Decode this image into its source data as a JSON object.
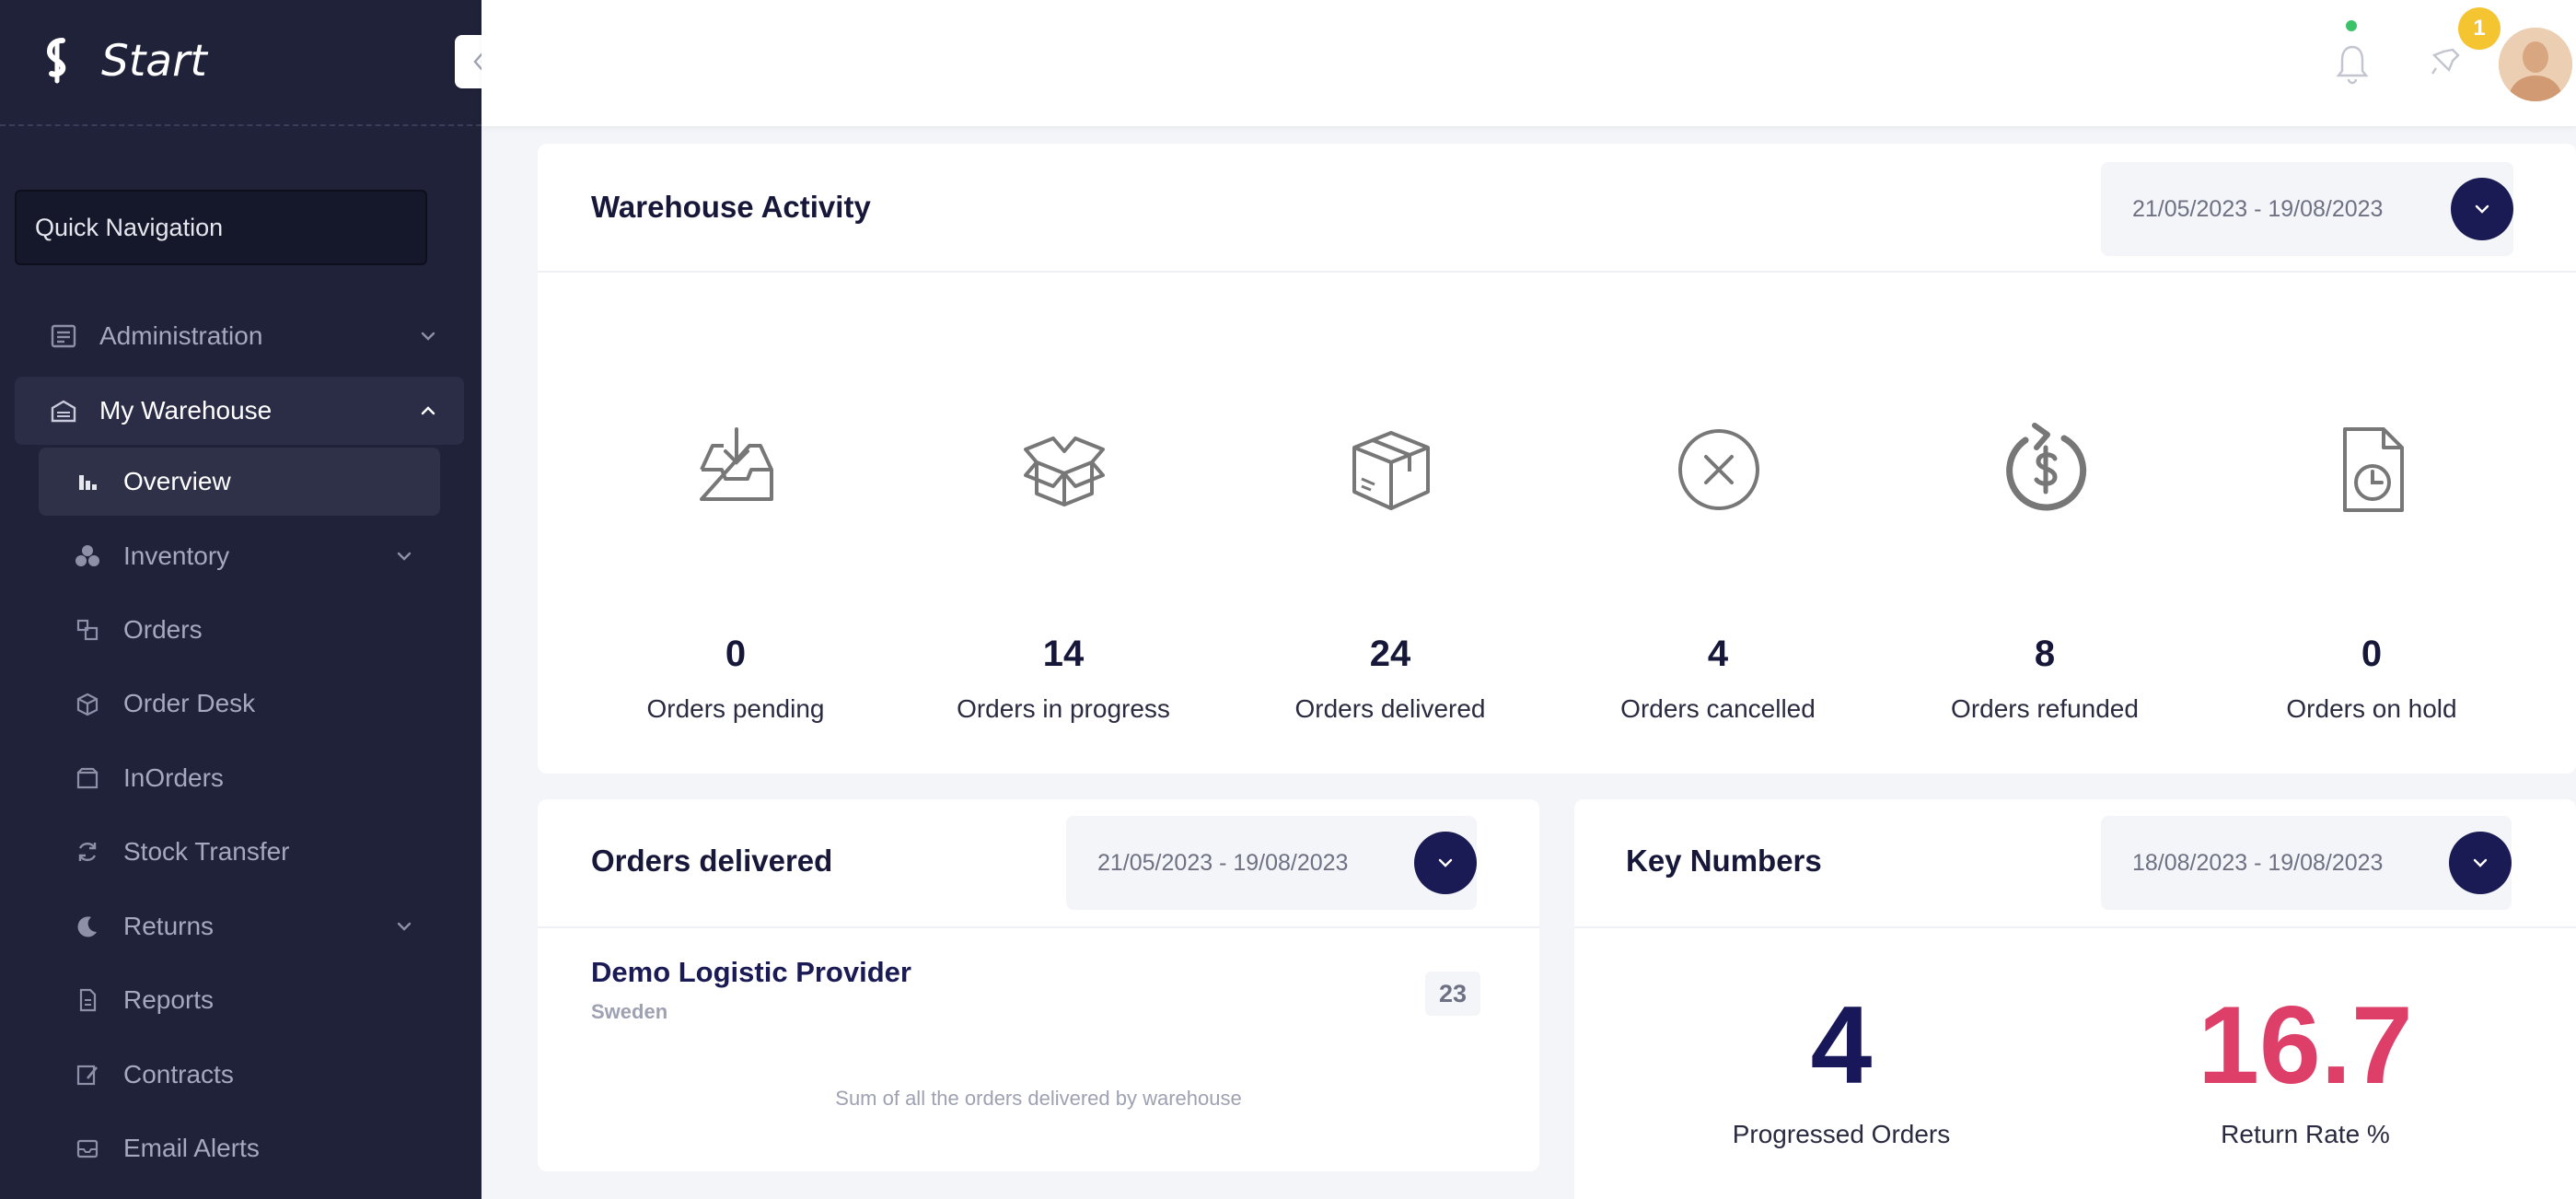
{
  "brand": {
    "name": "Start"
  },
  "sidebar": {
    "quick_nav_placeholder": "Quick Navigation",
    "items": [
      {
        "label": "Administration",
        "icon": "admin-panel-icon"
      },
      {
        "label": "My Warehouse",
        "icon": "warehouse-icon"
      },
      {
        "label": "Overview",
        "icon": "bar-chart-icon"
      },
      {
        "label": "Inventory",
        "icon": "boxes-icon"
      },
      {
        "label": "Orders",
        "icon": "orders-icon"
      },
      {
        "label": "Order Desk",
        "icon": "package-icon"
      },
      {
        "label": "InOrders",
        "icon": "inbox-box-icon"
      },
      {
        "label": "Stock Transfer",
        "icon": "refresh-icon"
      },
      {
        "label": "Returns",
        "icon": "moon-return-icon"
      },
      {
        "label": "Reports",
        "icon": "document-icon"
      },
      {
        "label": "Contracts",
        "icon": "contract-icon"
      },
      {
        "label": "Email Alerts",
        "icon": "mail-icon"
      }
    ]
  },
  "header": {
    "notification_count": "1"
  },
  "warehouse_activity": {
    "title": "Warehouse Activity",
    "date_range": "21/05/2023 - 19/08/2023",
    "stats": [
      {
        "value": "0",
        "label": "Orders pending",
        "icon": "inbox-download-icon"
      },
      {
        "value": "14",
        "label": "Orders in progress",
        "icon": "open-box-icon"
      },
      {
        "value": "24",
        "label": "Orders delivered",
        "icon": "closed-box-icon"
      },
      {
        "value": "4",
        "label": "Orders cancelled",
        "icon": "x-circle-icon"
      },
      {
        "value": "8",
        "label": "Orders refunded",
        "icon": "refund-dollar-icon"
      },
      {
        "value": "0",
        "label": "Orders on hold",
        "icon": "file-clock-icon"
      }
    ]
  },
  "orders_delivered": {
    "title": "Orders delivered",
    "date_range": "21/05/2023 - 19/08/2023",
    "provider_name": "Demo Logistic Provider",
    "provider_country": "Sweden",
    "provider_count": "23",
    "note": "Sum of all the orders delivered by warehouse"
  },
  "key_numbers": {
    "title": "Key Numbers",
    "date_range": "18/08/2023 - 19/08/2023",
    "progressed_value": "4",
    "progressed_label": "Progressed Orders",
    "return_value": "16.7",
    "return_label": "Return Rate %",
    "colors": {
      "progressed": "#17175a",
      "return": "#de3f69"
    }
  }
}
